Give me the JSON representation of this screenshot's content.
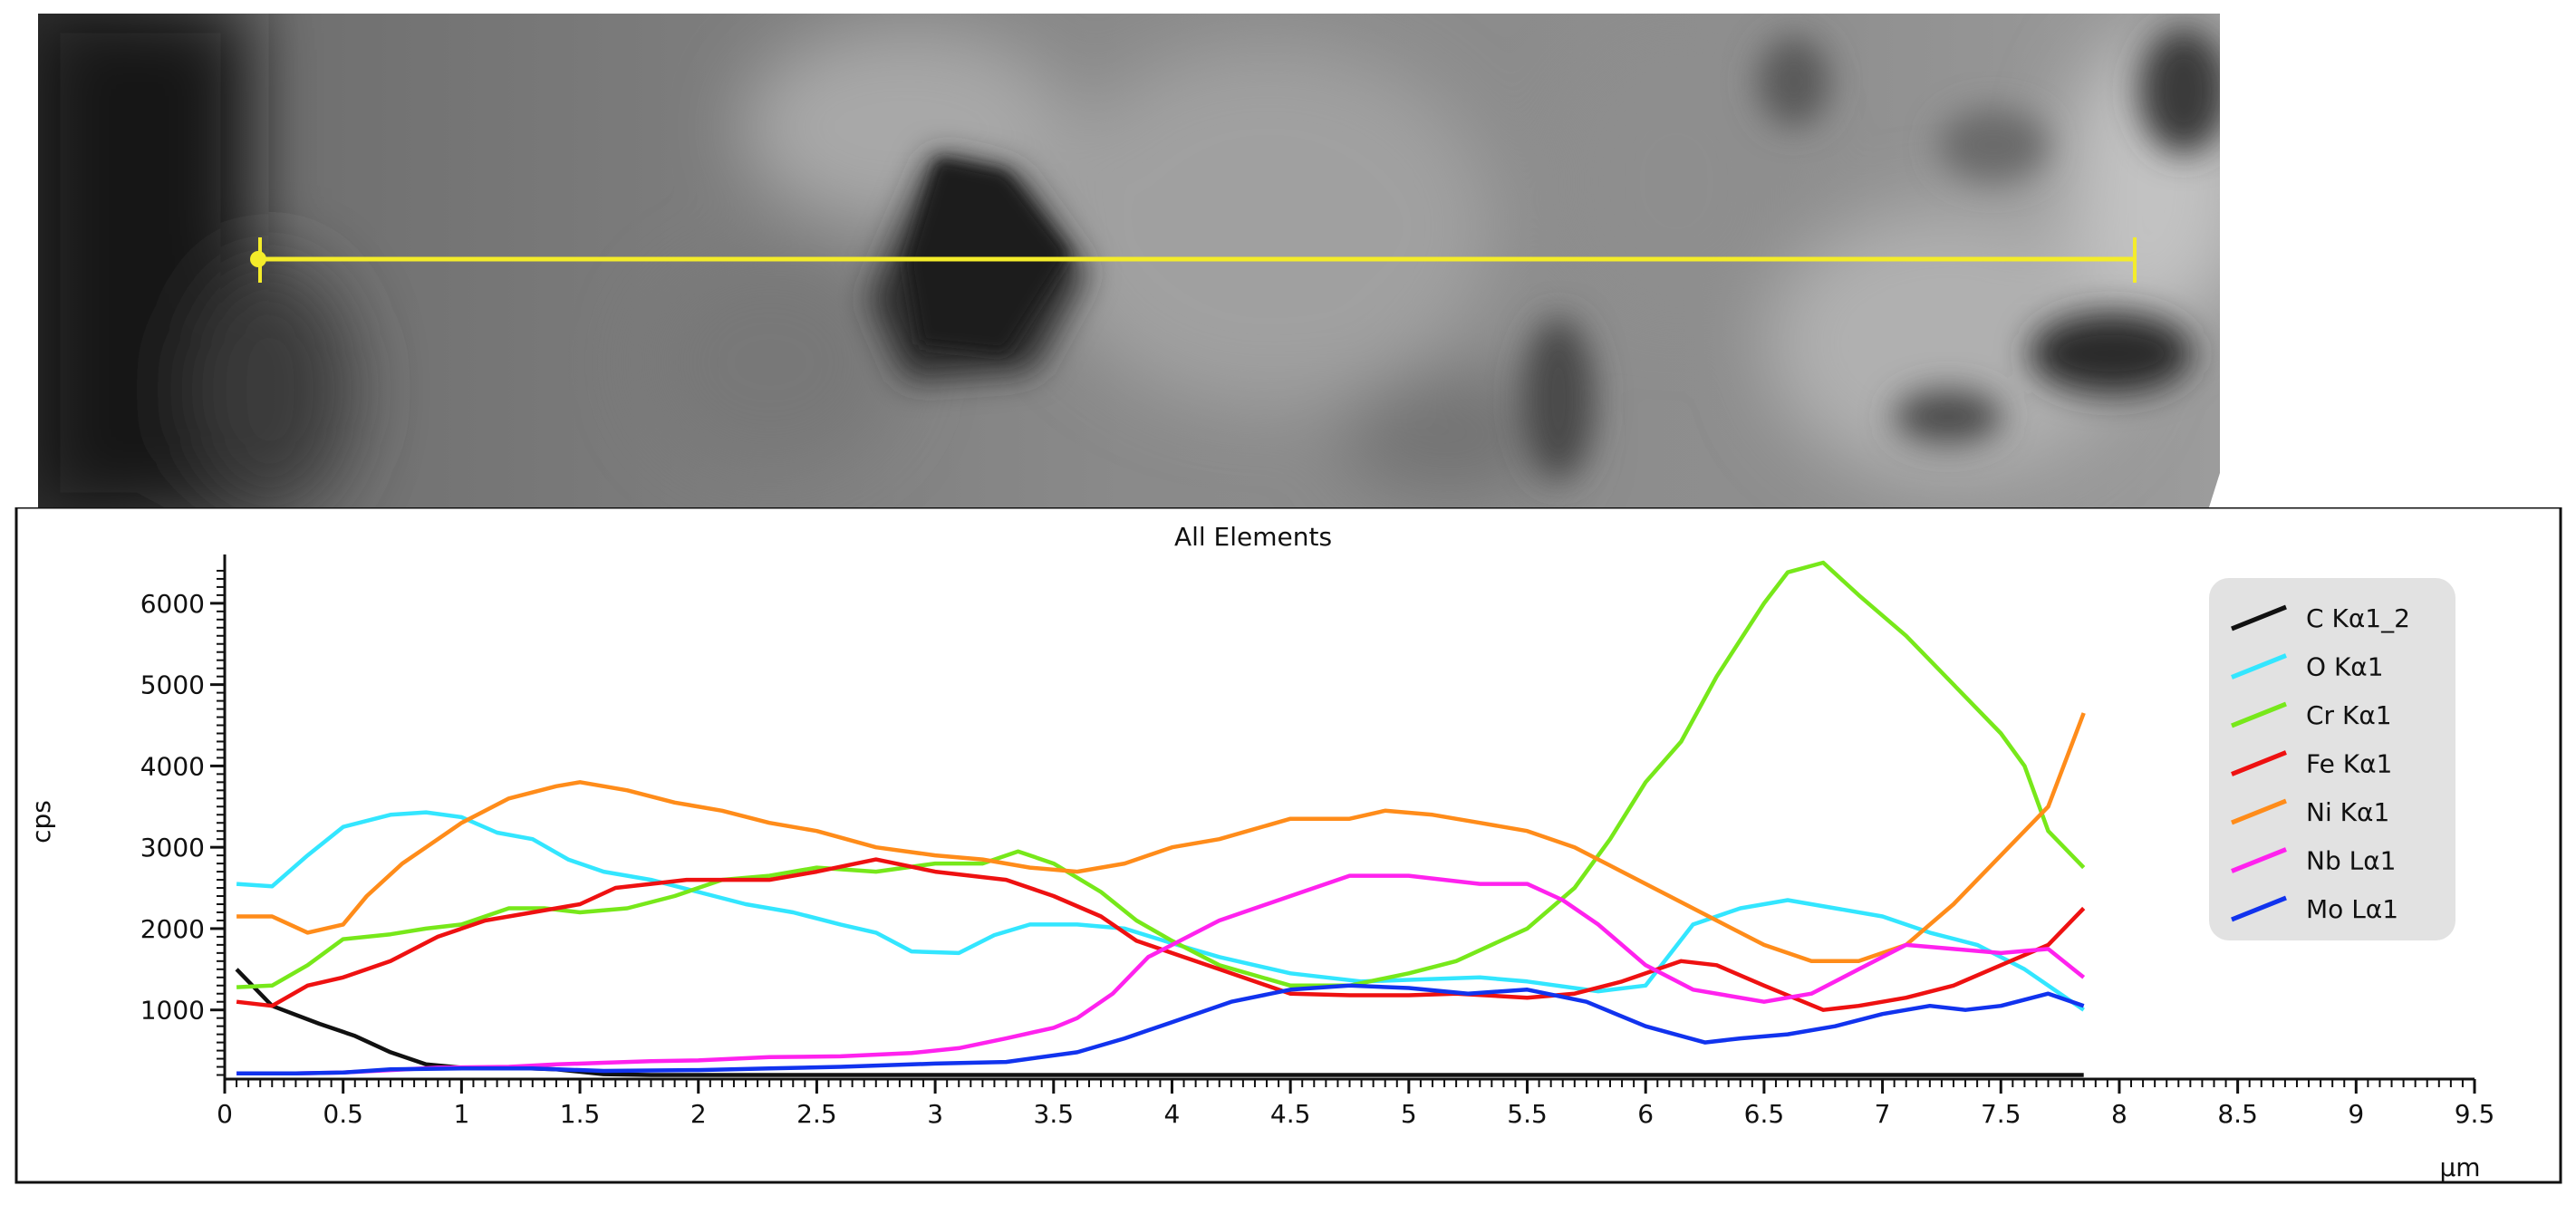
{
  "chart_data": {
    "type": "line",
    "title": "All Elements",
    "xlabel": "µm",
    "ylabel": "cps",
    "xlim": [
      0,
      9.5
    ],
    "ylim": [
      150,
      6600
    ],
    "xticks": [
      "0",
      "0.5",
      "1",
      "1.5",
      "2",
      "2.5",
      "3",
      "3.5",
      "4",
      "4.5",
      "5",
      "5.5",
      "6",
      "6.5",
      "7",
      "7.5",
      "8",
      "8.5",
      "9",
      "9.5"
    ],
    "yticks": [
      "1000",
      "2000",
      "3000",
      "4000",
      "5000",
      "6000"
    ],
    "grid": false,
    "legend_position": "right",
    "series": [
      {
        "name": "C Kα1_2",
        "color": "#111111",
        "x": [
          0.05,
          0.2,
          0.4,
          0.55,
          0.7,
          0.85,
          1.0,
          1.2,
          1.4,
          1.6,
          1.8,
          2.0,
          2.5,
          3.0,
          3.5,
          4.0,
          5.0,
          6.0,
          7.0,
          7.85
        ],
        "y": [
          1500,
          1050,
          830,
          680,
          480,
          330,
          290,
          290,
          270,
          210,
          200,
          200,
          200,
          200,
          200,
          200,
          200,
          200,
          200,
          200
        ]
      },
      {
        "name": "O Kα1",
        "color": "#33e6ff",
        "x": [
          0.05,
          0.2,
          0.35,
          0.5,
          0.7,
          0.85,
          1.0,
          1.15,
          1.3,
          1.45,
          1.6,
          1.8,
          2.0,
          2.2,
          2.4,
          2.6,
          2.75,
          2.9,
          3.1,
          3.25,
          3.4,
          3.6,
          3.8,
          4.0,
          4.2,
          4.5,
          4.8,
          5.0,
          5.3,
          5.5,
          5.8,
          6.0,
          6.2,
          6.4,
          6.6,
          6.8,
          7.0,
          7.2,
          7.4,
          7.6,
          7.85
        ],
        "y": [
          2550,
          2520,
          2900,
          3250,
          3400,
          3430,
          3370,
          3180,
          3100,
          2850,
          2700,
          2600,
          2450,
          2300,
          2200,
          2050,
          1950,
          1720,
          1700,
          1920,
          2050,
          2050,
          2000,
          1820,
          1650,
          1450,
          1350,
          1370,
          1400,
          1350,
          1230,
          1300,
          2050,
          2250,
          2350,
          2250,
          2150,
          1950,
          1800,
          1500,
          1000
        ]
      },
      {
        "name": "Cr Kα1",
        "color": "#77e81a",
        "x": [
          0.05,
          0.2,
          0.35,
          0.5,
          0.7,
          0.85,
          1.0,
          1.2,
          1.35,
          1.5,
          1.7,
          1.9,
          2.1,
          2.3,
          2.5,
          2.75,
          3.0,
          3.2,
          3.35,
          3.5,
          3.7,
          3.85,
          4.0,
          4.2,
          4.5,
          4.75,
          5.0,
          5.2,
          5.5,
          5.7,
          5.85,
          6.0,
          6.15,
          6.3,
          6.5,
          6.6,
          6.75,
          6.9,
          7.1,
          7.3,
          7.5,
          7.6,
          7.7,
          7.85
        ],
        "y": [
          1280,
          1300,
          1550,
          1870,
          1930,
          2000,
          2050,
          2250,
          2250,
          2200,
          2250,
          2400,
          2600,
          2650,
          2750,
          2700,
          2800,
          2800,
          2950,
          2800,
          2450,
          2100,
          1850,
          1550,
          1300,
          1300,
          1450,
          1600,
          2000,
          2500,
          3100,
          3800,
          4300,
          5100,
          6000,
          6380,
          6500,
          6100,
          5600,
          5000,
          4400,
          4000,
          3200,
          2750
        ]
      },
      {
        "name": "Fe Kα1",
        "color": "#ee1111",
        "x": [
          0.05,
          0.2,
          0.35,
          0.5,
          0.7,
          0.9,
          1.1,
          1.3,
          1.5,
          1.65,
          1.8,
          1.95,
          2.1,
          2.3,
          2.5,
          2.75,
          3.0,
          3.3,
          3.5,
          3.7,
          3.85,
          4.0,
          4.2,
          4.5,
          4.75,
          5.0,
          5.2,
          5.5,
          5.7,
          5.9,
          6.15,
          6.3,
          6.5,
          6.75,
          6.9,
          7.1,
          7.3,
          7.5,
          7.7,
          7.85
        ],
        "y": [
          1100,
          1050,
          1300,
          1400,
          1600,
          1900,
          2100,
          2200,
          2300,
          2500,
          2550,
          2600,
          2600,
          2600,
          2700,
          2850,
          2700,
          2600,
          2400,
          2150,
          1850,
          1700,
          1500,
          1200,
          1180,
          1180,
          1200,
          1150,
          1200,
          1350,
          1600,
          1550,
          1300,
          1000,
          1050,
          1150,
          1300,
          1550,
          1800,
          2250
        ]
      },
      {
        "name": "Ni Kα1",
        "color": "#ff8c1a",
        "x": [
          0.05,
          0.2,
          0.35,
          0.5,
          0.6,
          0.75,
          0.85,
          1.0,
          1.2,
          1.4,
          1.5,
          1.7,
          1.9,
          2.1,
          2.3,
          2.5,
          2.75,
          3.0,
          3.2,
          3.4,
          3.6,
          3.8,
          4.0,
          4.2,
          4.5,
          4.75,
          4.9,
          5.1,
          5.3,
          5.5,
          5.7,
          5.9,
          6.1,
          6.3,
          6.5,
          6.7,
          6.9,
          7.1,
          7.3,
          7.5,
          7.7,
          7.85
        ],
        "y": [
          2150,
          2150,
          1950,
          2050,
          2400,
          2800,
          3000,
          3300,
          3600,
          3750,
          3800,
          3700,
          3550,
          3450,
          3300,
          3200,
          3000,
          2900,
          2850,
          2750,
          2700,
          2800,
          3000,
          3100,
          3350,
          3350,
          3450,
          3400,
          3300,
          3200,
          3000,
          2700,
          2400,
          2100,
          1800,
          1600,
          1600,
          1800,
          2300,
          2900,
          3500,
          4650
        ]
      },
      {
        "name": "Nb Lα1",
        "color": "#ff22ee",
        "x": [
          0.05,
          0.3,
          0.5,
          0.7,
          0.9,
          1.2,
          1.4,
          1.6,
          1.8,
          2.0,
          2.3,
          2.6,
          2.9,
          3.1,
          3.3,
          3.5,
          3.6,
          3.75,
          3.9,
          4.0,
          4.2,
          4.5,
          4.75,
          5.0,
          5.3,
          5.5,
          5.65,
          5.8,
          6.0,
          6.2,
          6.5,
          6.7,
          6.9,
          7.1,
          7.3,
          7.5,
          7.7,
          7.85
        ],
        "y": [
          220,
          220,
          230,
          260,
          290,
          300,
          330,
          350,
          370,
          380,
          420,
          430,
          470,
          530,
          650,
          780,
          900,
          1200,
          1650,
          1800,
          2100,
          2400,
          2650,
          2650,
          2550,
          2550,
          2350,
          2050,
          1550,
          1250,
          1100,
          1200,
          1500,
          1800,
          1750,
          1700,
          1750,
          1400
        ]
      },
      {
        "name": "Mo Lα1",
        "color": "#1133ee",
        "x": [
          0.05,
          0.3,
          0.5,
          0.7,
          1.0,
          1.3,
          1.6,
          2.0,
          2.3,
          2.6,
          3.0,
          3.3,
          3.6,
          3.8,
          4.0,
          4.25,
          4.5,
          4.75,
          5.0,
          5.25,
          5.5,
          5.75,
          6.0,
          6.25,
          6.4,
          6.6,
          6.8,
          7.0,
          7.2,
          7.35,
          7.5,
          7.7,
          7.85
        ],
        "y": [
          220,
          220,
          230,
          270,
          280,
          280,
          250,
          260,
          280,
          300,
          340,
          360,
          480,
          650,
          850,
          1100,
          1250,
          1300,
          1270,
          1200,
          1250,
          1100,
          800,
          600,
          650,
          700,
          800,
          950,
          1050,
          1000,
          1050,
          1200,
          1050
        ]
      }
    ]
  }
}
